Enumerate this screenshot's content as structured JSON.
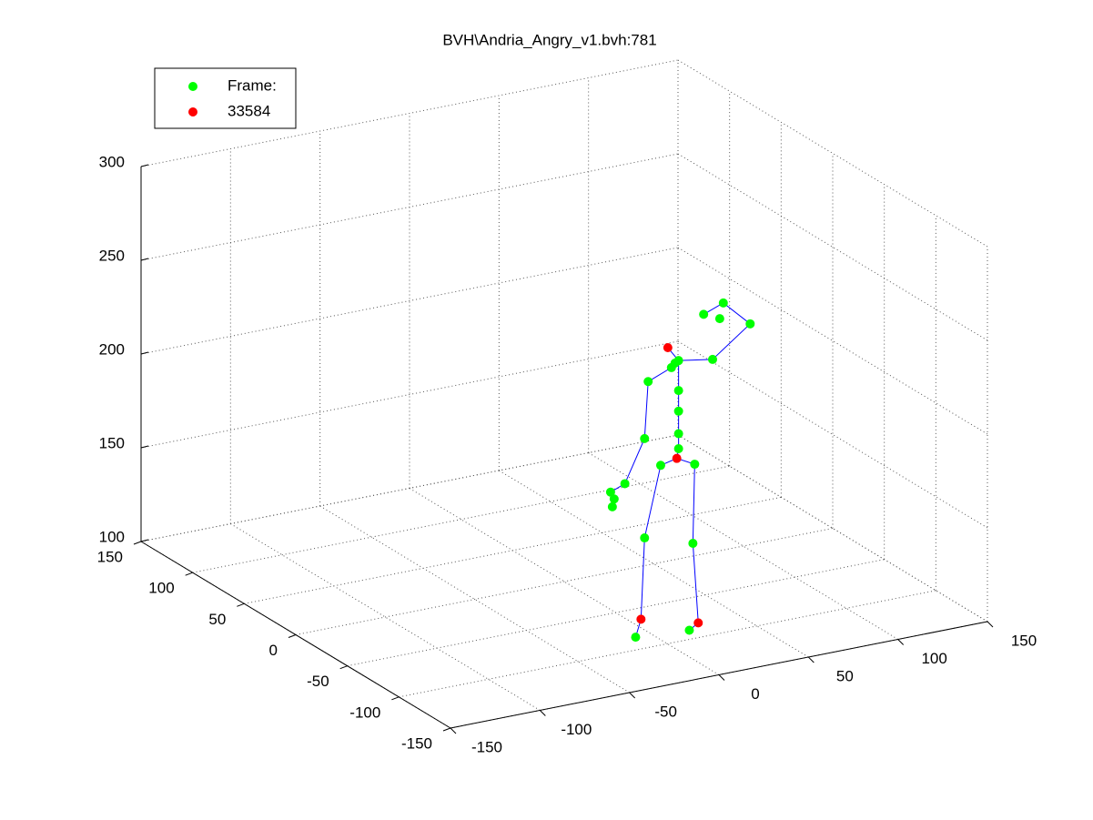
{
  "chart_data": {
    "type": "scatter3d",
    "title": "BVH\\Andria_Angry_v1.bvh:781",
    "xlim": [
      -150,
      150
    ],
    "xticks": [
      -150,
      -100,
      -50,
      0,
      50,
      100,
      150
    ],
    "ylim": [
      -150,
      150
    ],
    "yticks": [
      -150,
      -100,
      -50,
      0,
      50,
      100,
      150
    ],
    "zlim": [
      100,
      300
    ],
    "zticks": [
      100,
      150,
      200,
      250,
      300
    ],
    "grid": true,
    "legend": "top-left",
    "series": [
      {
        "name": "Frame:",
        "color": "#00ff00",
        "mode": "markers",
        "x": [
          27,
          27,
          27,
          27,
          25,
          27,
          23,
          10,
          8,
          -3,
          -9,
          -10,
          -11,
          46,
          67,
          52,
          41,
          50,
          17,
          8,
          3,
          36,
          35,
          33
        ],
        "y": [
          -64,
          -64,
          -64,
          -64,
          -64,
          -64,
          -64,
          -64,
          -64,
          -64,
          -64,
          -64,
          -64,
          -64,
          -64,
          -64,
          -64,
          -64,
          -64,
          -64,
          -64,
          -64,
          -64,
          -64
        ],
        "z": [
          187,
          195,
          207,
          218,
          233,
          234,
          231,
          226,
          196,
          174,
          167,
          163,
          171,
          231,
          246,
          260,
          256,
          252,
          180,
          143,
          91,
          177,
          135,
          89
        ]
      },
      {
        "name": "33584",
        "color": "#ff0000",
        "mode": "markers",
        "x": [
          26,
          21,
          6,
          38
        ],
        "y": [
          -64,
          -64,
          -64,
          -64
        ],
        "z": [
          182,
          242,
          100,
          92
        ]
      },
      {
        "color": "#0000ff",
        "mode": "lines",
        "x": [
          3,
          6,
          8,
          17,
          26,
          36,
          35,
          38,
          33,
          null,
          26,
          27,
          27,
          27,
          27,
          27,
          21,
          null,
          -11,
          -3,
          8,
          10,
          23,
          25,
          27,
          46,
          67,
          52,
          41
        ],
        "y": [
          -64,
          -64,
          -64,
          -64,
          -64,
          -64,
          -64,
          -64,
          -64,
          null,
          -64,
          -64,
          -64,
          -64,
          -64,
          -64,
          -64,
          null,
          -64,
          -64,
          -64,
          -64,
          -64,
          -64,
          -64,
          -64,
          -64,
          -64,
          -64
        ],
        "z": [
          91,
          100,
          143,
          180,
          182,
          177,
          135,
          92,
          89,
          null,
          182,
          187,
          195,
          207,
          218,
          234,
          242,
          null,
          171,
          174,
          196,
          226,
          231,
          233,
          234,
          231,
          246,
          260,
          256
        ]
      }
    ]
  }
}
